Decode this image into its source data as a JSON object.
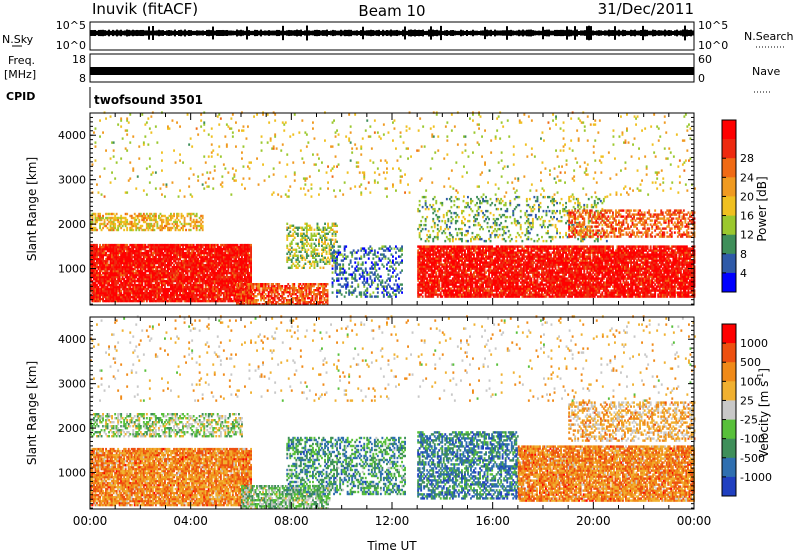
{
  "header": {
    "station": "Inuvik (fitACF)",
    "beam": "Beam 10",
    "date": "31/Dec/2011"
  },
  "strips": {
    "nsky_label": "N.Sky",
    "nsky_ticks": [
      "10^5",
      "10^0"
    ],
    "nsearch_label": "N.Search",
    "nsearch_ticks": [
      "10^5",
      "10^0"
    ],
    "freq_label_1": "Freq.",
    "freq_label_2": "[MHz]",
    "freq_ticks": [
      "18",
      "8"
    ],
    "nave_label": "Nave",
    "nave_ticks": [
      "60",
      "0"
    ],
    "cpid_label": "CPID",
    "cpid_value": "twofsound 3501"
  },
  "chart_data": [
    {
      "type": "heatmap",
      "panel": "power",
      "ylabel": "Slant Range [km]",
      "xlabel": "",
      "xlim": [
        0,
        24
      ],
      "ylim": [
        180,
        4500
      ],
      "yticks": [
        "1000",
        "2000",
        "3000",
        "4000"
      ],
      "colorbar_label": "Power [dB]",
      "colorbar_ticks": [
        "4",
        "8",
        "12",
        "16",
        "20",
        "24",
        "28"
      ],
      "colors": [
        "#0000ff",
        "#2f5aa8",
        "#3f8f5a",
        "#9bc82e",
        "#f0c020",
        "#f09a20",
        "#f06a14",
        "#ee2a10",
        "#ff0000"
      ],
      "bands": [
        {
          "t0": 0.0,
          "t1": 6.4,
          "r0": 250,
          "r1": 1550,
          "level": 0.92,
          "density": 0.92
        },
        {
          "t0": 0.0,
          "t1": 4.5,
          "r0": 1850,
          "r1": 2250,
          "level": 0.55,
          "density": 0.55
        },
        {
          "t0": 5.8,
          "t1": 9.4,
          "r0": 180,
          "r1": 650,
          "level": 0.78,
          "density": 0.7
        },
        {
          "t0": 7.8,
          "t1": 9.8,
          "r0": 1000,
          "r1": 2000,
          "level": 0.4,
          "density": 0.45
        },
        {
          "t0": 9.6,
          "t1": 12.4,
          "r0": 350,
          "r1": 1500,
          "level": 0.2,
          "density": 0.3
        },
        {
          "t0": 13.0,
          "t1": 24.0,
          "r0": 350,
          "r1": 1500,
          "level": 0.92,
          "density": 0.88
        },
        {
          "t0": 13.0,
          "t1": 20.5,
          "r0": 1600,
          "r1": 2600,
          "level": 0.35,
          "density": 0.22
        },
        {
          "t0": 19.0,
          "t1": 24.0,
          "r0": 1700,
          "r1": 2300,
          "level": 0.75,
          "density": 0.5
        },
        {
          "t0": 0.0,
          "t1": 24.0,
          "r0": 2600,
          "r1": 4500,
          "level": 0.5,
          "density": 0.04
        }
      ]
    },
    {
      "type": "heatmap",
      "panel": "velocity",
      "ylabel": "Slant Range [km]",
      "xlabel": "Time UT",
      "xlim": [
        0,
        24
      ],
      "ylim": [
        180,
        4500
      ],
      "xticks": [
        "00:00",
        "04:00",
        "08:00",
        "12:00",
        "16:00",
        "20:00",
        "00:00"
      ],
      "yticks": [
        "1000",
        "2000",
        "3000",
        "4000"
      ],
      "colorbar_label": "Velocity [m s^-1]",
      "colorbar_ticks": [
        "1000",
        "500",
        "100",
        "25",
        "-25",
        "-100",
        "-500",
        "-1000"
      ],
      "colors": [
        "#2040c0",
        "#2f6fb0",
        "#3f8f5a",
        "#58c03a",
        "#c8c8c8",
        "#f0b030",
        "#f08a18",
        "#ee5010",
        "#ff0000"
      ],
      "bands": [
        {
          "t0": 0.0,
          "t1": 6.4,
          "r0": 250,
          "r1": 1550,
          "level": 0.72,
          "density": 0.85
        },
        {
          "t0": 0.0,
          "t1": 6.0,
          "r0": 1800,
          "r1": 2300,
          "level": 0.45,
          "density": 0.5
        },
        {
          "t0": 6.0,
          "t1": 9.5,
          "r0": 180,
          "r1": 700,
          "level": 0.4,
          "density": 0.7
        },
        {
          "t0": 7.8,
          "t1": 12.5,
          "r0": 500,
          "r1": 1800,
          "level": 0.28,
          "density": 0.45
        },
        {
          "t0": 13.0,
          "t1": 17.0,
          "r0": 400,
          "r1": 1900,
          "level": 0.22,
          "density": 0.55
        },
        {
          "t0": 17.0,
          "t1": 24.0,
          "r0": 350,
          "r1": 1600,
          "level": 0.72,
          "density": 0.85
        },
        {
          "t0": 19.0,
          "t1": 24.0,
          "r0": 1700,
          "r1": 2600,
          "level": 0.62,
          "density": 0.45
        },
        {
          "t0": 0.0,
          "t1": 24.0,
          "r0": 2600,
          "r1": 4500,
          "level": 0.6,
          "density": 0.04
        }
      ]
    }
  ]
}
